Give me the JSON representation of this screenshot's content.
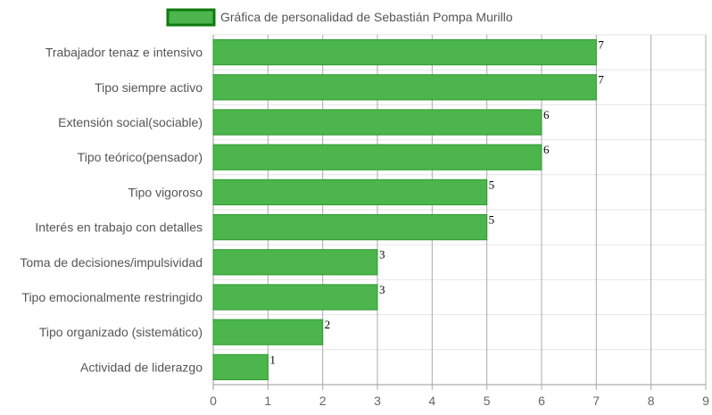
{
  "chart_data": {
    "type": "bar",
    "orientation": "horizontal",
    "categories": [
      "Trabajador tenaz e intensivo",
      "Tipo siempre activo",
      "Extensión social(sociable)",
      "Tipo teórico(pensador)",
      "Tipo vigoroso",
      "Interés en trabajo con detalles",
      "Toma de decisiones/impulsividad",
      "Tipo emocionalmente restringido",
      "Tipo organizado (sistemático)",
      "Actividad de liderazgo"
    ],
    "series": [
      {
        "name": "Gráfica de personalidad de Sebastián Pompa Murillo",
        "values": [
          7,
          7,
          6,
          6,
          5,
          5,
          3,
          3,
          2,
          1
        ]
      }
    ],
    "value_labels": [
      "7",
      "7",
      "6",
      "6",
      "5",
      "5",
      "3",
      "3",
      "2",
      "1"
    ],
    "xticks": [
      "0",
      "1",
      "2",
      "3",
      "4",
      "5",
      "6",
      "7",
      "8",
      "9"
    ],
    "xlim": [
      0,
      9
    ],
    "grid": true,
    "legend_position": "top",
    "colors": {
      "bar_fill": "#4cb54c",
      "bar_border": "#2e9a2e",
      "legend_border": "#0c7a0c",
      "grid_minor": "#e6e6e6",
      "grid_major": "#888888"
    }
  }
}
